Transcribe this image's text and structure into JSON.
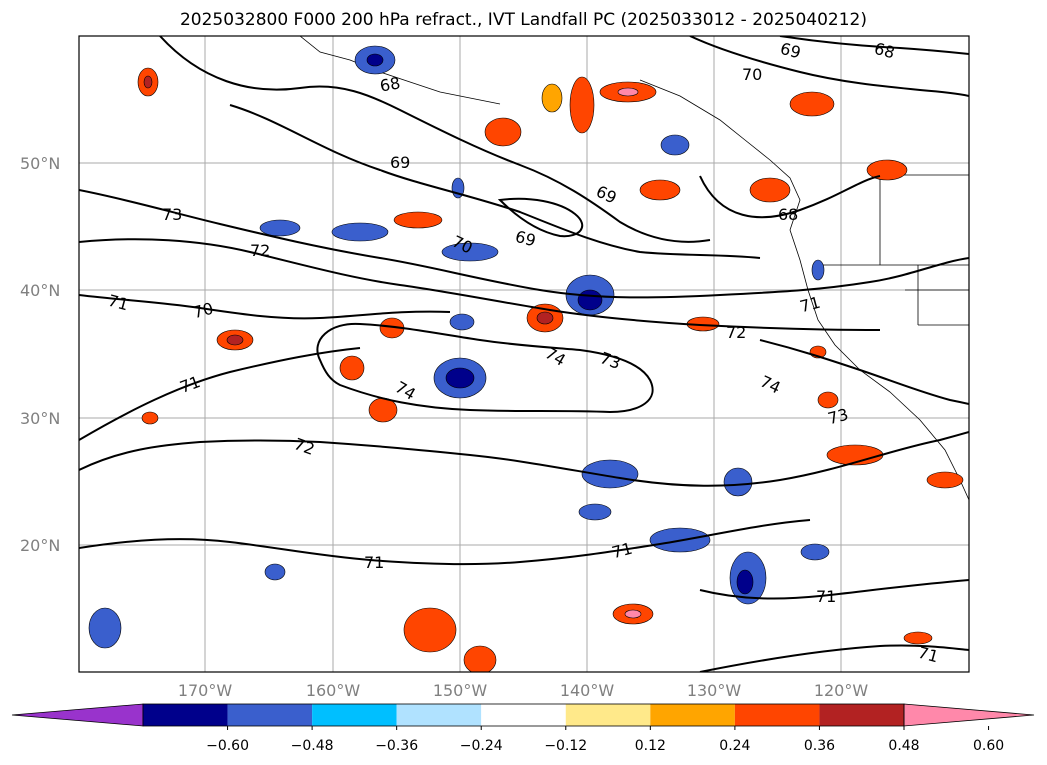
{
  "title": "2025032800 F000 200 hPa refract., IVT Landfall PC (2025033012 - 2025040212)",
  "lat_labels": [
    "50°N",
    "40°N",
    "30°N",
    "20°N"
  ],
  "lon_labels": [
    "170°W",
    "160°W",
    "150°W",
    "140°W",
    "130°W",
    "120°W"
  ],
  "contour_labels": [
    "69",
    "68",
    "70",
    "68",
    "69",
    "69",
    "73",
    "68",
    "70",
    "69",
    "72",
    "71",
    "71",
    "70",
    "72",
    "74",
    "73",
    "74",
    "71",
    "74",
    "73",
    "72",
    "71",
    "71",
    "71",
    "71"
  ],
  "colorbar": {
    "ticks": [
      "−0.60",
      "−0.48",
      "−0.36",
      "−0.24",
      "−0.12",
      "0.12",
      "0.24",
      "0.36",
      "0.48",
      "0.60"
    ],
    "colors": [
      "#9933cc",
      "#00008b",
      "#3a5fcd",
      "#00bfff",
      "#b0e2ff",
      "#ffffff",
      "#ffe98a",
      "#ffa500",
      "#ff4500",
      "#b22222",
      "#ff88aa"
    ]
  }
}
